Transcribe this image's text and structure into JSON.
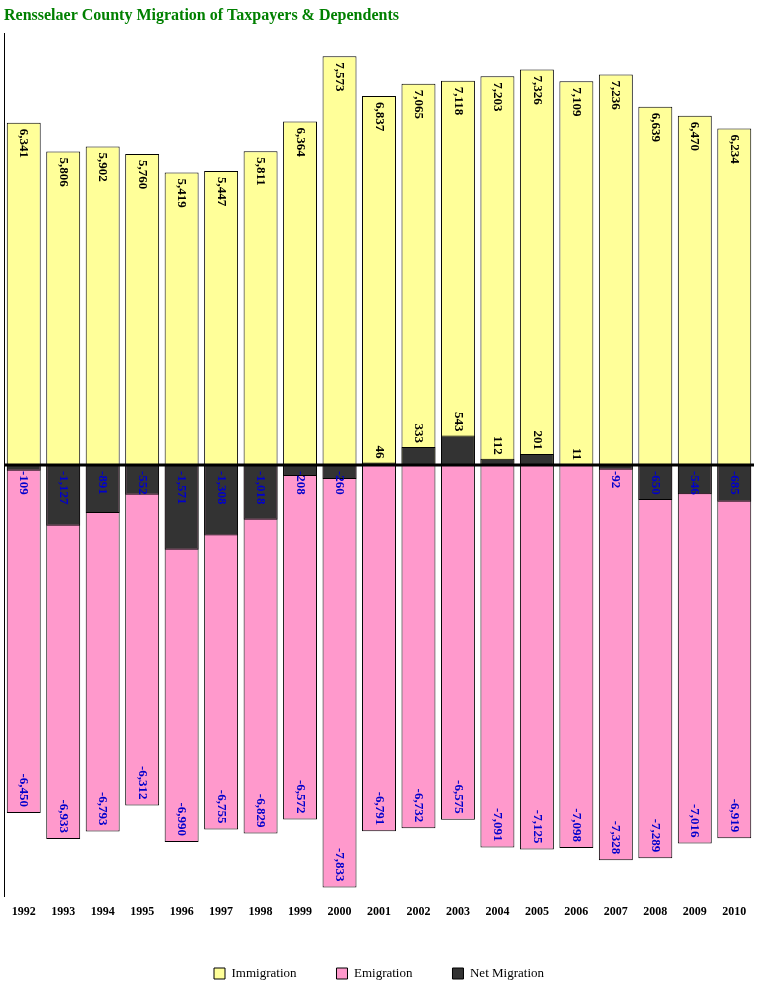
{
  "chart_data": {
    "type": "bar",
    "title": "Rensselaer County Migration of Taxpayers & Dependents",
    "categories": [
      "1992",
      "1993",
      "1994",
      "1995",
      "1996",
      "1997",
      "1998",
      "1999",
      "2000",
      "2001",
      "2002",
      "2003",
      "2004",
      "2005",
      "2006",
      "2007",
      "2008",
      "2009",
      "2010"
    ],
    "series": [
      {
        "name": "Immigration",
        "color": "#ffff99",
        "values": [
          6341,
          5806,
          5902,
          5760,
          5419,
          5447,
          5811,
          6364,
          7573,
          6837,
          7065,
          7118,
          7203,
          7326,
          7109,
          7236,
          6639,
          6470,
          6234
        ],
        "value_labels": [
          "6,341",
          "5,806",
          "5,902",
          "5,760",
          "5,419",
          "5,447",
          "5,811",
          "6,364",
          "7,573",
          "6,837",
          "7,065",
          "7,118",
          "7,203",
          "7,326",
          "7,109",
          "7,236",
          "6,639",
          "6,470",
          "6,234"
        ]
      },
      {
        "name": "Emigration",
        "color": "#ff99cc",
        "values": [
          -6450,
          -6933,
          -6793,
          -6312,
          -6990,
          -6755,
          -6829,
          -6572,
          -7833,
          -6791,
          -6732,
          -6575,
          -7091,
          -7125,
          -7098,
          -7328,
          -7289,
          -7016,
          -6919
        ],
        "value_labels": [
          "-6,450",
          "-6,933",
          "-6,793",
          "-6,312",
          "-6,990",
          "-6,755",
          "-6,829",
          "-6,572",
          "-7,833",
          "-6,791",
          "-6,732",
          "-6,575",
          "-7,091",
          "-7,125",
          "-7,098",
          "-7,328",
          "-7,289",
          "-7,016",
          "-6,919"
        ]
      },
      {
        "name": "Net Migration",
        "color": "#333333",
        "values": [
          -109,
          -1127,
          -891,
          -552,
          -1571,
          -1308,
          -1018,
          -208,
          -260,
          46,
          333,
          543,
          112,
          201,
          11,
          -92,
          -650,
          -546,
          -685
        ],
        "value_labels": [
          "-109",
          "-1,127",
          "-891",
          "-552",
          "-1,571",
          "-1,308",
          "-1,018",
          "-208",
          "-260",
          "46",
          "333",
          "543",
          "112",
          "201",
          "11",
          "-92",
          "-650",
          "-546",
          "-685"
        ]
      }
    ],
    "ylim": [
      -8000,
      8000
    ],
    "stacked": false,
    "grid": false,
    "legend": "bottom",
    "data_labels": true,
    "tick_labels": "x"
  }
}
